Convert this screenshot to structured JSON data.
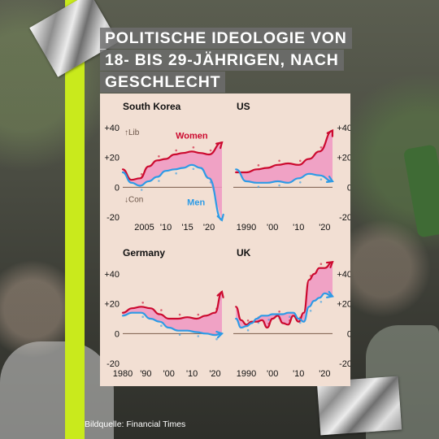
{
  "title_lines": [
    "POLITISCHE IDEOLOGIE VON",
    "18- BIS 29-JÄHRIGEN, NACH",
    "GESCHLECHT"
  ],
  "source": "Bildquelle: Financial Times",
  "colors": {
    "women": "#cc0a2f",
    "men": "#2d9be6",
    "gap": "#f098c2",
    "panel": "#f2dfd3",
    "zero": "#7a5c4a"
  },
  "chart_data": [
    {
      "type": "line",
      "title": "South Korea",
      "xlim": [
        2000,
        2023
      ],
      "ylim": [
        -20,
        40
      ],
      "xticks": [
        2005,
        2010,
        2015,
        2020
      ],
      "xtick_labels": [
        "2005",
        "'10",
        "'15",
        "'20"
      ],
      "yticks": [
        40,
        20,
        0,
        -20
      ],
      "ytick_labels": [
        "+40",
        "+20",
        "0",
        "-20"
      ],
      "ytick_side": "left",
      "annotations": {
        "lib": "↑Lib",
        "con": "↓Con"
      },
      "series": [
        {
          "name": "Women",
          "x": [
            2000,
            2002,
            2004,
            2006,
            2008,
            2010,
            2012,
            2014,
            2016,
            2018,
            2020,
            2023
          ],
          "y": [
            12,
            5,
            6,
            14,
            18,
            19,
            22,
            23,
            24,
            23,
            22,
            30
          ]
        },
        {
          "name": "Men",
          "x": [
            2000,
            2002,
            2004,
            2006,
            2008,
            2010,
            2012,
            2014,
            2016,
            2018,
            2020,
            2023
          ],
          "y": [
            10,
            3,
            1,
            4,
            7,
            11,
            12,
            13,
            15,
            13,
            6,
            -22
          ]
        }
      ]
    },
    {
      "type": "line",
      "title": "US",
      "xlim": [
        1985,
        2023
      ],
      "ylim": [
        -20,
        40
      ],
      "xticks": [
        1990,
        2000,
        2010,
        2020
      ],
      "xtick_labels": [
        "1990",
        "'00",
        "'10",
        "'20"
      ],
      "yticks": [
        40,
        20,
        0,
        -20
      ],
      "ytick_labels": [
        "+40",
        "+20",
        "0",
        "-20"
      ],
      "ytick_side": "right",
      "series": [
        {
          "name": "",
          "x": [
            1986,
            1990,
            1994,
            1998,
            2002,
            2006,
            2010,
            2014,
            2018,
            2023
          ],
          "y": [
            10,
            10,
            12,
            13,
            15,
            16,
            15,
            19,
            24,
            38
          ]
        },
        {
          "name": "",
          "x": [
            1986,
            1990,
            1994,
            1998,
            2002,
            2006,
            2010,
            2014,
            2018,
            2023
          ],
          "y": [
            12,
            4,
            3,
            3,
            4,
            3,
            6,
            9,
            8,
            4
          ]
        }
      ]
    },
    {
      "type": "line",
      "title": "Germany",
      "xlim": [
        1980,
        2023
      ],
      "ylim": [
        -20,
        40
      ],
      "xticks": [
        1980,
        1990,
        2000,
        2010,
        2020
      ],
      "xtick_labels": [
        "1980",
        "'90",
        "'00",
        "'10",
        "'20"
      ],
      "yticks": [
        40,
        20,
        0,
        -20
      ],
      "ytick_labels": [
        "+40",
        "+20",
        "0",
        "-20"
      ],
      "ytick_side": "left",
      "series": [
        {
          "name": "",
          "x": [
            1980,
            1984,
            1988,
            1992,
            1996,
            2000,
            2004,
            2008,
            2012,
            2016,
            2020,
            2023
          ],
          "y": [
            14,
            17,
            18,
            17,
            13,
            10,
            10,
            11,
            10,
            12,
            14,
            28
          ]
        },
        {
          "name": "",
          "x": [
            1980,
            1984,
            1988,
            1992,
            1996,
            2000,
            2004,
            2008,
            2012,
            2016,
            2020,
            2023
          ],
          "y": [
            12,
            14,
            14,
            10,
            8,
            4,
            2,
            2,
            1,
            0,
            -1,
            0
          ]
        }
      ]
    },
    {
      "type": "line",
      "title": "UK",
      "xlim": [
        1985,
        2023
      ],
      "ylim": [
        -20,
        40
      ],
      "xticks": [
        1990,
        2000,
        2010,
        2020
      ],
      "xtick_labels": [
        "1990",
        "'00",
        "'10",
        "'20"
      ],
      "yticks": [
        40,
        20,
        0,
        -20
      ],
      "ytick_labels": [
        "+40",
        "+20",
        "0",
        "-20"
      ],
      "ytick_side": "right",
      "series": [
        {
          "name": "",
          "x": [
            1986,
            1988,
            1990,
            1992,
            1994,
            1996,
            1998,
            2000,
            2002,
            2004,
            2006,
            2008,
            2010,
            2012,
            2014,
            2016,
            2018,
            2020,
            2023
          ],
          "y": [
            18,
            9,
            6,
            8,
            8,
            9,
            4,
            10,
            12,
            7,
            6,
            12,
            8,
            14,
            36,
            40,
            44,
            44,
            48
          ]
        },
        {
          "name": "",
          "x": [
            1986,
            1988,
            1990,
            1992,
            1994,
            1996,
            1998,
            2000,
            2002,
            2004,
            2006,
            2008,
            2010,
            2012,
            2014,
            2016,
            2018,
            2020,
            2023
          ],
          "y": [
            10,
            4,
            5,
            7,
            10,
            12,
            12,
            13,
            13,
            13,
            14,
            14,
            10,
            8,
            18,
            22,
            24,
            27,
            25
          ]
        }
      ]
    }
  ]
}
